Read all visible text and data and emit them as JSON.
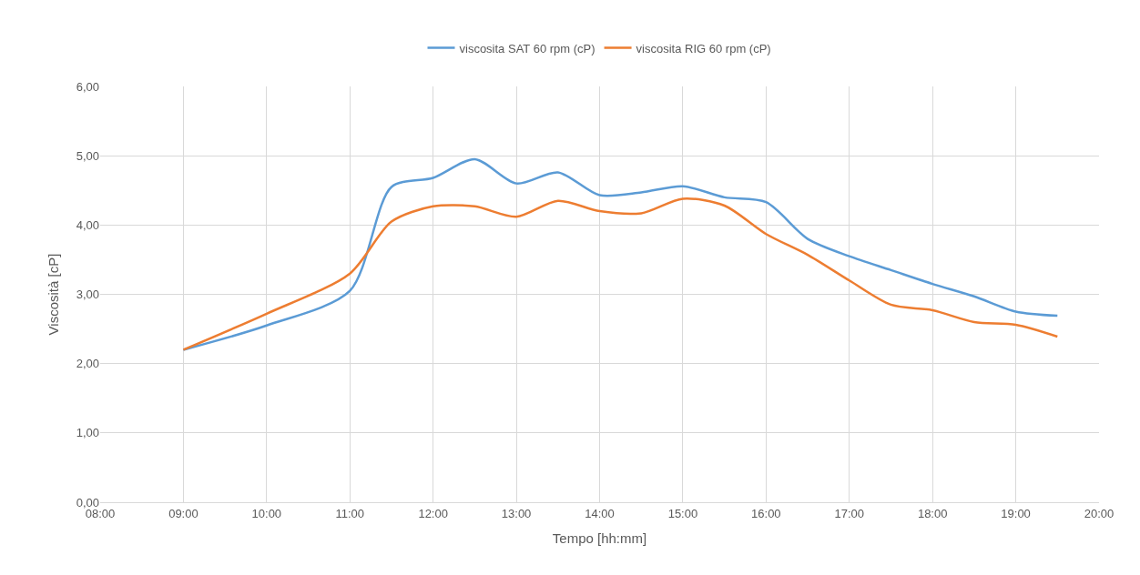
{
  "chart_data": {
    "type": "line",
    "xlabel": "Tempo [hh:mm]",
    "ylabel": "Viscosità [cP]",
    "x": [
      9,
      10,
      11,
      11.5,
      12,
      12.5,
      13,
      13.5,
      14,
      14.5,
      15,
      15.5,
      16,
      16.5,
      17,
      17.5,
      18,
      18.5,
      19,
      19.5
    ],
    "series": [
      {
        "name": "viscosita SAT 60 rpm (cP)",
        "color": "#5b9bd5",
        "values": [
          2.2,
          2.55,
          3.05,
          4.55,
          4.68,
          4.95,
          4.6,
          4.76,
          4.43,
          4.47,
          4.56,
          4.4,
          4.33,
          3.8,
          3.55,
          3.35,
          3.15,
          2.97,
          2.75,
          2.69
        ]
      },
      {
        "name": "viscosita RIG 60 rpm (cP)",
        "color": "#ed7d31",
        "values": [
          2.2,
          2.72,
          3.3,
          4.05,
          4.27,
          4.27,
          4.12,
          4.35,
          4.2,
          4.17,
          4.38,
          4.28,
          3.87,
          3.57,
          3.2,
          2.85,
          2.77,
          2.6,
          2.56,
          2.39
        ]
      }
    ],
    "xlim": [
      8,
      20
    ],
    "xticks": [
      {
        "value": 8,
        "label": "08:00"
      },
      {
        "value": 9,
        "label": "09:00"
      },
      {
        "value": 10,
        "label": "10:00"
      },
      {
        "value": 11,
        "label": "11:00"
      },
      {
        "value": 12,
        "label": "12:00"
      },
      {
        "value": 13,
        "label": "13:00"
      },
      {
        "value": 14,
        "label": "14:00"
      },
      {
        "value": 15,
        "label": "15:00"
      },
      {
        "value": 16,
        "label": "16:00"
      },
      {
        "value": 17,
        "label": "17:00"
      },
      {
        "value": 18,
        "label": "18:00"
      },
      {
        "value": 19,
        "label": "19:00"
      },
      {
        "value": 20,
        "label": "20:00"
      }
    ],
    "ylim": [
      0,
      6
    ],
    "yticks": [
      {
        "value": 0,
        "label": "0,00"
      },
      {
        "value": 1,
        "label": "1,00"
      },
      {
        "value": 2,
        "label": "2,00"
      },
      {
        "value": 3,
        "label": "3,00"
      },
      {
        "value": 4,
        "label": "4,00"
      },
      {
        "value": 5,
        "label": "5,00"
      },
      {
        "value": 6,
        "label": "6,00"
      }
    ],
    "grid": true,
    "legend": "top",
    "marker": "none",
    "line_style": "solid"
  }
}
